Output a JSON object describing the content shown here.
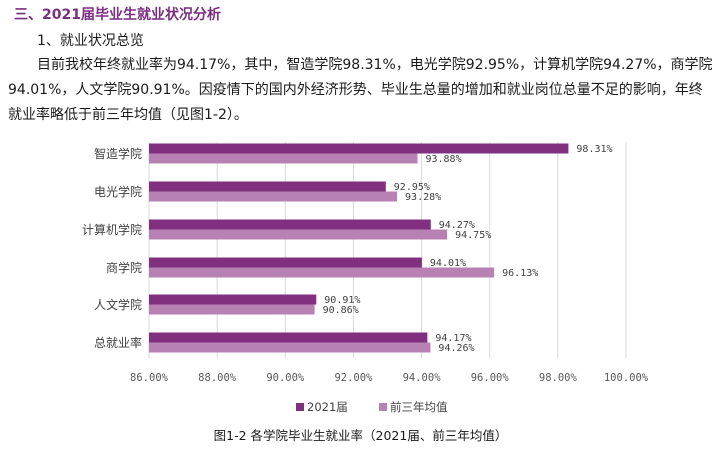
{
  "section": {
    "title": "三、2021届毕业生就业状况分析"
  },
  "subsection": {
    "title": "1、就业状况总览"
  },
  "paragraph": {
    "text": "目前我校年终就业率为94.17%，其中，智造学院98.31%，电光学院92.95%，计算机学院94.27%，商学院94.01%，人文学院90.91%。因疫情下的国内外经济形势、毕业生总量的增加和就业岗位总量不足的影响，年终就业率略低于前三年均值（见图1-2）。"
  },
  "chart_data": {
    "type": "bar",
    "orientation": "horizontal",
    "categories": [
      "智造学院",
      "电光学院",
      "计算机学院",
      "商学院",
      "人文学院",
      "总就业率"
    ],
    "series": [
      {
        "name": "2021届",
        "values": [
          98.31,
          92.95,
          94.27,
          94.01,
          90.91,
          94.17
        ],
        "labels": [
          "98.31%",
          "92.95%",
          "94.27%",
          "94.01%",
          "90.91%",
          "94.17%"
        ],
        "color": "#80307f"
      },
      {
        "name": "前三年均值",
        "values": [
          93.88,
          93.28,
          94.75,
          96.13,
          90.86,
          94.26
        ],
        "labels": [
          "93.88%",
          "93.28%",
          "94.75%",
          "96.13%",
          "90.86%",
          "94.26%"
        ],
        "color": "#b781b4"
      }
    ],
    "xlim": [
      86,
      100
    ],
    "ticks": [
      86,
      88,
      90,
      92,
      94,
      96,
      98,
      100
    ],
    "tick_labels": [
      "86.00%",
      "88.00%",
      "90.00%",
      "92.00%",
      "94.00%",
      "96.00%",
      "98.00%",
      "100.00%"
    ],
    "grid": true,
    "legend_position": "bottom"
  },
  "caption": {
    "text": "图1-2 各学院毕业生就业率（2021届、前三年均值）"
  }
}
